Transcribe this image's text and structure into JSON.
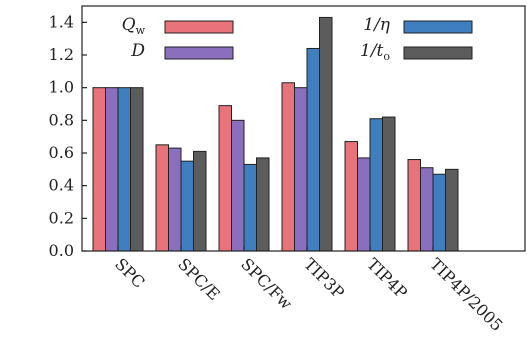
{
  "chart_data": {
    "type": "bar",
    "title": "",
    "xlabel": "",
    "ylabel": "",
    "ylim": [
      0.0,
      1.5
    ],
    "yticks": [
      "0.0",
      "0.2",
      "0.4",
      "0.6",
      "0.8",
      "1.0",
      "1.2",
      "1.4"
    ],
    "categories": [
      "SPC",
      "SPC/E",
      "SPC/Fw",
      "TIP3P",
      "TIP4P",
      "TIP4P/2005"
    ],
    "series": [
      {
        "name": "Q_w",
        "label_main": "Q",
        "label_sub": "w",
        "color": "#e8737a",
        "values": [
          1.0,
          0.65,
          0.89,
          1.03,
          0.67,
          0.56
        ]
      },
      {
        "name": "D",
        "label_main": "D",
        "label_sub": "",
        "color": "#8a6fbf",
        "values": [
          1.0,
          0.63,
          0.8,
          1.0,
          0.57,
          0.51
        ]
      },
      {
        "name": "1/η",
        "label_main": "1/η",
        "label_sub": "",
        "color": "#3f7fbf",
        "values": [
          1.0,
          0.55,
          0.53,
          1.24,
          0.81,
          0.47
        ]
      },
      {
        "name": "1/t_o",
        "label_main": "1/t",
        "label_sub": "o",
        "color": "#5c5c5c",
        "values": [
          1.0,
          0.61,
          0.57,
          1.43,
          0.82,
          0.5
        ]
      }
    ],
    "legend_position": "top"
  }
}
